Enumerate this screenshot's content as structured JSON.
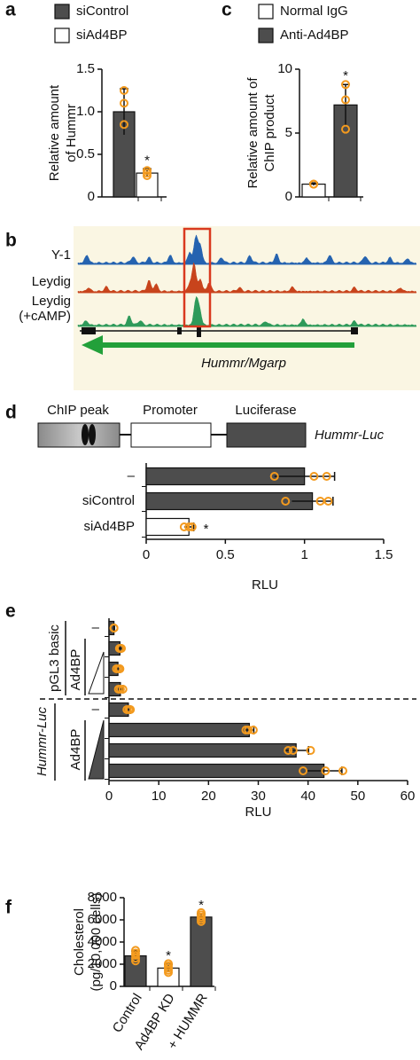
{
  "panel_labels": [
    "a",
    "b",
    "c",
    "d",
    "e",
    "f"
  ],
  "genome_browser": {
    "tracks": [
      [
        "Y-1"
      ],
      [
        "Leydig"
      ],
      [
        "Leydig",
        "(+cAMP)"
      ]
    ],
    "gene": "Hummr/Mgarp"
  },
  "construct": {
    "elements": [
      "ChIP peak",
      "Promoter",
      "Luciferase"
    ],
    "name": "Hummr-Luc"
  },
  "chart_data": [
    {
      "type": "bar",
      "legend": [
        "siControl",
        "siAd4BP"
      ],
      "colors": [
        "#4d4d4d",
        "#ffffff"
      ],
      "values": [
        1.0,
        0.28
      ],
      "errors": [
        0.27,
        0.05
      ],
      "points": [
        [
          1.25,
          1.1,
          0.85
        ],
        [
          0.31,
          0.28,
          0.25
        ]
      ],
      "significance": [
        null,
        "*"
      ],
      "ylabel": [
        "Relative amount",
        "of Hummr"
      ],
      "ylim": [
        0,
        1.5
      ],
      "yticks": [
        0,
        0.5,
        {
          "value": 1,
          "label": "1.0"
        },
        1.5
      ]
    },
    {
      "type": "bar",
      "legend": [
        "Normal IgG",
        "Anti-Ad4BP"
      ],
      "colors": [
        "#ffffff",
        "#4d4d4d"
      ],
      "values": [
        1.0,
        7.2
      ],
      "errors": [
        0.1,
        1.6
      ],
      "points": [
        [
          1.0,
          1.0,
          1.0
        ],
        [
          8.8,
          7.6,
          5.3
        ]
      ],
      "significance": [
        null,
        "*"
      ],
      "ylabel": [
        "Relative amount of",
        "ChIP product"
      ],
      "ylim": [
        0,
        10
      ],
      "yticks": [
        0,
        5,
        10
      ]
    },
    {
      "type": "barh",
      "categories": [
        "–",
        "siControl",
        "siAd4BP"
      ],
      "colors": [
        "#4d4d4d",
        "#4d4d4d",
        "#ffffff"
      ],
      "values": [
        1.0,
        1.05,
        0.27
      ],
      "errors": [
        0.19,
        0.13,
        0.03
      ],
      "points": [
        [
          0.81,
          1.06,
          1.14
        ],
        [
          0.88,
          1.1,
          1.15
        ],
        [
          0.24,
          0.27,
          0.29
        ]
      ],
      "significance": [
        null,
        null,
        "*"
      ],
      "xlabel": "RLU",
      "xlim": [
        0,
        1.5
      ],
      "xticks": [
        0,
        0.5,
        1,
        1.5
      ]
    },
    {
      "type": "barh",
      "categories": [
        "–",
        null,
        null,
        null,
        "–",
        null,
        null,
        null
      ],
      "group_labels": [
        "pGL3 basic",
        "Hummr-Luc"
      ],
      "treatment_labels": [
        "Ad4BP",
        "Ad4BP"
      ],
      "colors": [
        "#4d4d4d",
        "#4d4d4d",
        "#4d4d4d",
        "#4d4d4d",
        "#4d4d4d",
        "#4d4d4d",
        "#4d4d4d",
        "#4d4d4d"
      ],
      "values": [
        1.0,
        2.2,
        1.8,
        2.3,
        3.9,
        28.2,
        37.6,
        43.2
      ],
      "errors": [
        0.1,
        0.3,
        0.4,
        0.5,
        0.4,
        0.9,
        2.5,
        3.6
      ],
      "points": [
        [
          1.0,
          1.0,
          1.0
        ],
        [
          2.1,
          2.3,
          2.5
        ],
        [
          1.5,
          1.9,
          2.2
        ],
        [
          1.9,
          2.3,
          2.8
        ],
        [
          3.6,
          4.0,
          4.3
        ],
        [
          27.5,
          28.0,
          29.0
        ],
        [
          36.0,
          37.0,
          40.5
        ],
        [
          39.0,
          43.5,
          47.0
        ]
      ],
      "xlabel": "RLU",
      "xlim": [
        0,
        60
      ],
      "xticks": [
        0,
        10,
        20,
        30,
        40,
        50,
        60
      ]
    },
    {
      "type": "bar",
      "categories": [
        "Control",
        "Ad4BP KD",
        "+ HUMMR"
      ],
      "colors": [
        "#4d4d4d",
        "#ffffff",
        "#4d4d4d"
      ],
      "values": [
        2750,
        1650,
        6250
      ],
      "errors": [
        450,
        350,
        300
      ],
      "points": [
        [
          3250,
          3000,
          2800,
          2550,
          2300
        ],
        [
          2050,
          1850,
          1650,
          1450,
          1250
        ],
        [
          6650,
          6450,
          6250,
          6050,
          5850
        ]
      ],
      "significance": [
        null,
        "*",
        "*"
      ],
      "ylabel": [
        "Cholesterol",
        "(pg/10,000 cells)"
      ],
      "ylim": [
        0,
        8000
      ],
      "yticks": [
        0,
        2000,
        4000,
        6000,
        8000
      ]
    }
  ]
}
